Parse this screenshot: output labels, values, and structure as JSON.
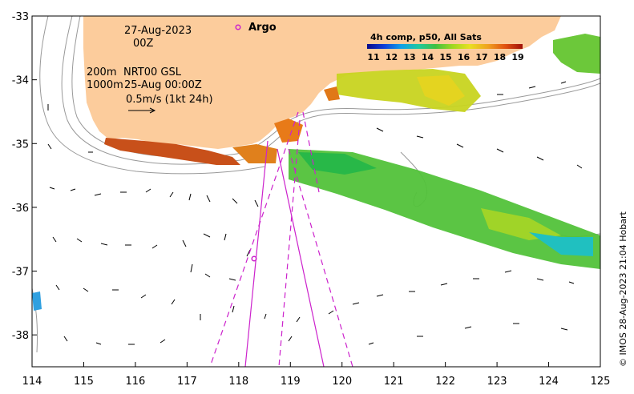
{
  "map": {
    "info": {
      "date": "27-Aug-2023",
      "time": "00Z",
      "isobath_shallow": "200m",
      "isobath_deep": "1000m",
      "product": "NRT00 GSL",
      "product_time": "25-Aug 00:00Z",
      "vector_scale": "0.5m/s (1kt 24h)"
    },
    "argo_label": "Argo",
    "credit": "© IMOS 28-Aug-2023 21:04 Hobart",
    "colorbar": {
      "title": "4h comp, p50, All Sats",
      "ticks": [
        "11",
        "12",
        "13",
        "14",
        "15",
        "16",
        "17",
        "18",
        "19"
      ],
      "colors": [
        "#0a0a8a",
        "#1040d8",
        "#10a0e8",
        "#20c8a0",
        "#40c040",
        "#a0d820",
        "#e8e020",
        "#f0a020",
        "#e05010",
        "#a01008"
      ]
    },
    "colors": {
      "land": "#fccc9c",
      "track": "#cc22cc",
      "contour": "#999999"
    },
    "x_axis": {
      "min": 114,
      "max": 125,
      "ticks": [
        "114",
        "115",
        "116",
        "117",
        "118",
        "119",
        "120",
        "121",
        "122",
        "123",
        "124",
        "125"
      ]
    },
    "y_axis": {
      "min": -38.5,
      "max": -33,
      "ticks": [
        "-33",
        "-34",
        "-35",
        "-36",
        "-37",
        "-38"
      ]
    }
  }
}
